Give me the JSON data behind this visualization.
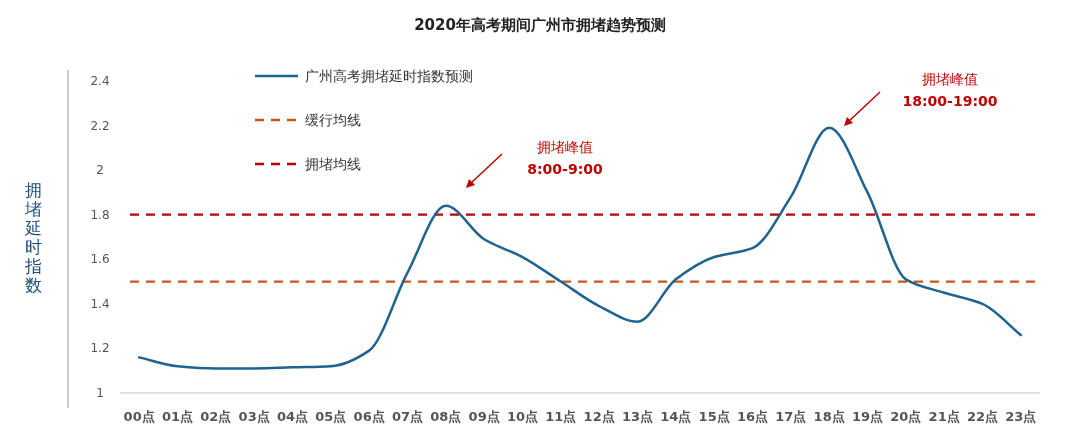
{
  "chart_data": {
    "type": "line",
    "title": "2020年高考期间广州市拥堵趋势预测",
    "ylabel": "拥堵延时指数",
    "categories": [
      "00点",
      "01点",
      "02点",
      "03点",
      "04点",
      "05点",
      "06点",
      "07点",
      "08点",
      "09点",
      "10点",
      "11点",
      "12点",
      "13点",
      "14点",
      "15点",
      "16点",
      "17点",
      "18点",
      "19点",
      "20点",
      "21点",
      "22点",
      "23点"
    ],
    "series": [
      {
        "name": "广州高考拥堵延时指数预测",
        "color": "#1f6391",
        "values": [
          1.16,
          1.12,
          1.11,
          1.11,
          1.115,
          1.12,
          1.19,
          1.54,
          1.84,
          1.69,
          1.61,
          1.5,
          1.39,
          1.32,
          1.51,
          1.61,
          1.65,
          1.88,
          2.19,
          1.9,
          1.51,
          1.45,
          1.4,
          1.26
        ]
      }
    ],
    "ylim": [
      1,
      2.4
    ],
    "yticks": [
      1,
      1.2,
      1.4,
      1.6,
      1.8,
      2,
      2.2,
      2.4
    ],
    "ref_lines": [
      {
        "axis": "y",
        "value": 1.5,
        "label": "缓行均线",
        "color": "#c55a11",
        "line_style": "dashed"
      },
      {
        "axis": "y",
        "value": 1.8,
        "label": "拥堵均线",
        "color": "#c00000",
        "line_style": "dashed"
      }
    ],
    "annotations": [
      "拥堵峰值\n8:00-9:00",
      "拥堵峰值\n18:00-19:00"
    ],
    "legend": "top left"
  }
}
